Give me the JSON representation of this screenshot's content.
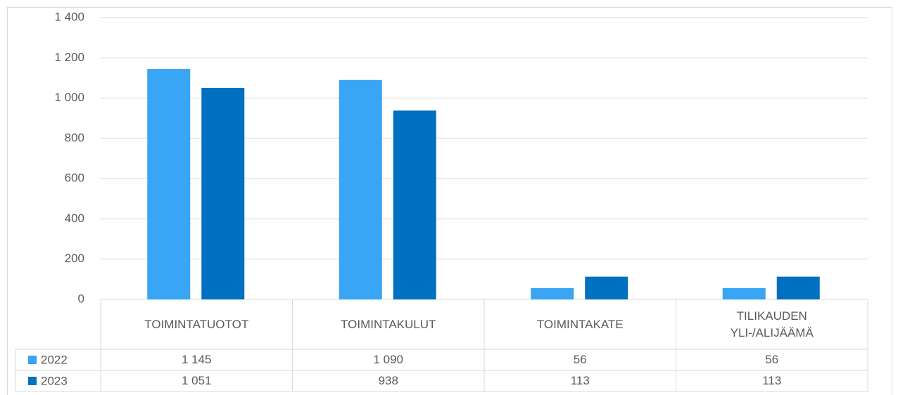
{
  "chart_data": {
    "type": "bar",
    "categories": [
      "TOIMINTATUOTOT",
      "TOIMINTAKULUT",
      "TOIMINTAKATE",
      "TILIKAUDEN YLI-/ALIJÄÄMÄ"
    ],
    "series": [
      {
        "name": "2022",
        "color": "#38a5f5",
        "values": [
          1145,
          1090,
          56,
          56
        ],
        "value_labels": [
          "1 145",
          "1 090",
          "56",
          "56"
        ]
      },
      {
        "name": "2023",
        "color": "#0070c0",
        "values": [
          1051,
          938,
          113,
          113
        ],
        "value_labels": [
          "1 051",
          "938",
          "113",
          "113"
        ]
      }
    ],
    "ylim": [
      0,
      1400
    ],
    "yticks": [
      0,
      200,
      400,
      600,
      800,
      {
        "value": 1000,
        "label": "1 000"
      },
      {
        "value": 1200,
        "label": "1 200"
      },
      {
        "value": 1400,
        "label": "1 400"
      }
    ],
    "grid": true
  }
}
